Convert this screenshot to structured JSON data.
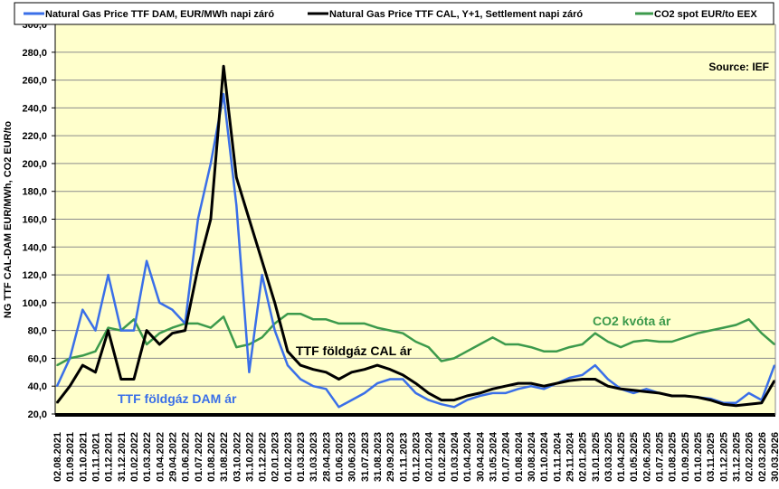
{
  "chart_data": {
    "type": "line",
    "title": "",
    "xlabel": "",
    "ylabel": "NG TTF CAL-DAM EUR/MWh, CO2 EUR/to",
    "ylim": [
      20,
      300
    ],
    "yticks": [
      "20,0",
      "40,0",
      "60,0",
      "80,0",
      "100,0",
      "120,0",
      "140,0",
      "160,0",
      "180,0",
      "200,0",
      "220,0",
      "240,0",
      "260,0",
      "280,0",
      "300,0"
    ],
    "ytick_values": [
      20,
      40,
      60,
      80,
      100,
      120,
      140,
      160,
      180,
      200,
      220,
      240,
      260,
      280,
      300
    ],
    "grid": true,
    "legend_placement": "top",
    "categories": [
      "02.08.2021",
      "01.09.2021",
      "01.10.2021",
      "01.11.2021",
      "01.12.2021",
      "31.12.2021",
      "01.02.2022",
      "01.03.2022",
      "01.04.2022",
      "29.04.2022",
      "01.06.2022",
      "01.07.2022",
      "01.08.2022",
      "31.08.2022",
      "03.10.2022",
      "31.10.2022",
      "01.12.2022",
      "02.01.2023",
      "01.02.2023",
      "01.03.2023",
      "31.03.2023",
      "28.04.2023",
      "01.06.2023",
      "30.06.2023",
      "31.07.2023",
      "31.08.2023",
      "29.09.2023",
      "01.11.2023",
      "01.12.2023",
      "02.01.2024",
      "01.02.2024",
      "01.03.2024",
      "01.04.2024",
      "30.04.2024",
      "31.05.2024",
      "01.07.2024",
      "01.08.2024",
      "30.08.2024",
      "01.10.2024",
      "01.11.2024",
      "29.11.2024",
      "02.01.2025",
      "31.01.2025",
      "03.03.2025",
      "01.04.2025",
      "01.05.2025",
      "02.06.2025",
      "01.07.2025",
      "01.08.2025",
      "01.09.2025",
      "01.10.2025",
      "03.11.2025",
      "01.12.2025",
      "31.12.2025",
      "02.02.2026",
      "02.03.2026",
      "30.03.2026"
    ],
    "series": [
      {
        "name": "Natural Gas Price TTF DAM, EUR/MWh napi záró",
        "color": "#3a6fe8",
        "values": [
          40,
          60,
          95,
          80,
          120,
          80,
          80,
          130,
          100,
          95,
          85,
          160,
          200,
          250,
          170,
          50,
          120,
          80,
          55,
          45,
          40,
          38,
          25,
          30,
          35,
          42,
          45,
          45,
          35,
          30,
          27,
          25,
          30,
          33,
          35,
          35,
          38,
          40,
          38,
          42,
          46,
          48,
          55,
          45,
          38,
          35,
          38,
          35,
          33,
          33,
          32,
          31,
          28,
          28,
          35,
          30,
          55
        ]
      },
      {
        "name": "Natural Gas Price TTF CAL, Y+1, Settlement napi záró",
        "color": "#000000",
        "values": [
          28,
          40,
          55,
          50,
          80,
          45,
          45,
          80,
          70,
          78,
          80,
          125,
          160,
          270,
          190,
          160,
          130,
          100,
          65,
          55,
          52,
          50,
          45,
          50,
          52,
          55,
          52,
          48,
          42,
          35,
          30,
          30,
          33,
          35,
          38,
          40,
          42,
          42,
          40,
          42,
          44,
          45,
          45,
          40,
          38,
          37,
          36,
          35,
          33,
          33,
          32,
          30,
          27,
          26,
          27,
          28,
          44
        ]
      },
      {
        "name": "CO2 spot EUR/to EEX",
        "color": "#3c9a4c",
        "values": [
          55,
          60,
          62,
          65,
          82,
          80,
          88,
          70,
          78,
          82,
          85,
          85,
          82,
          90,
          68,
          70,
          75,
          85,
          92,
          92,
          88,
          88,
          85,
          85,
          85,
          82,
          80,
          78,
          72,
          68,
          58,
          60,
          65,
          70,
          75,
          70,
          70,
          68,
          65,
          65,
          68,
          70,
          78,
          72,
          68,
          72,
          73,
          72,
          72,
          75,
          78,
          80,
          82,
          84,
          88,
          78,
          70
        ]
      }
    ],
    "annotations": {
      "source": "Source: IEF",
      "dam_label": "TTF földgáz DAM ár",
      "cal_label": "TTF földgáz CAL ár",
      "co2_label": "CO2 kvóta ár"
    }
  }
}
